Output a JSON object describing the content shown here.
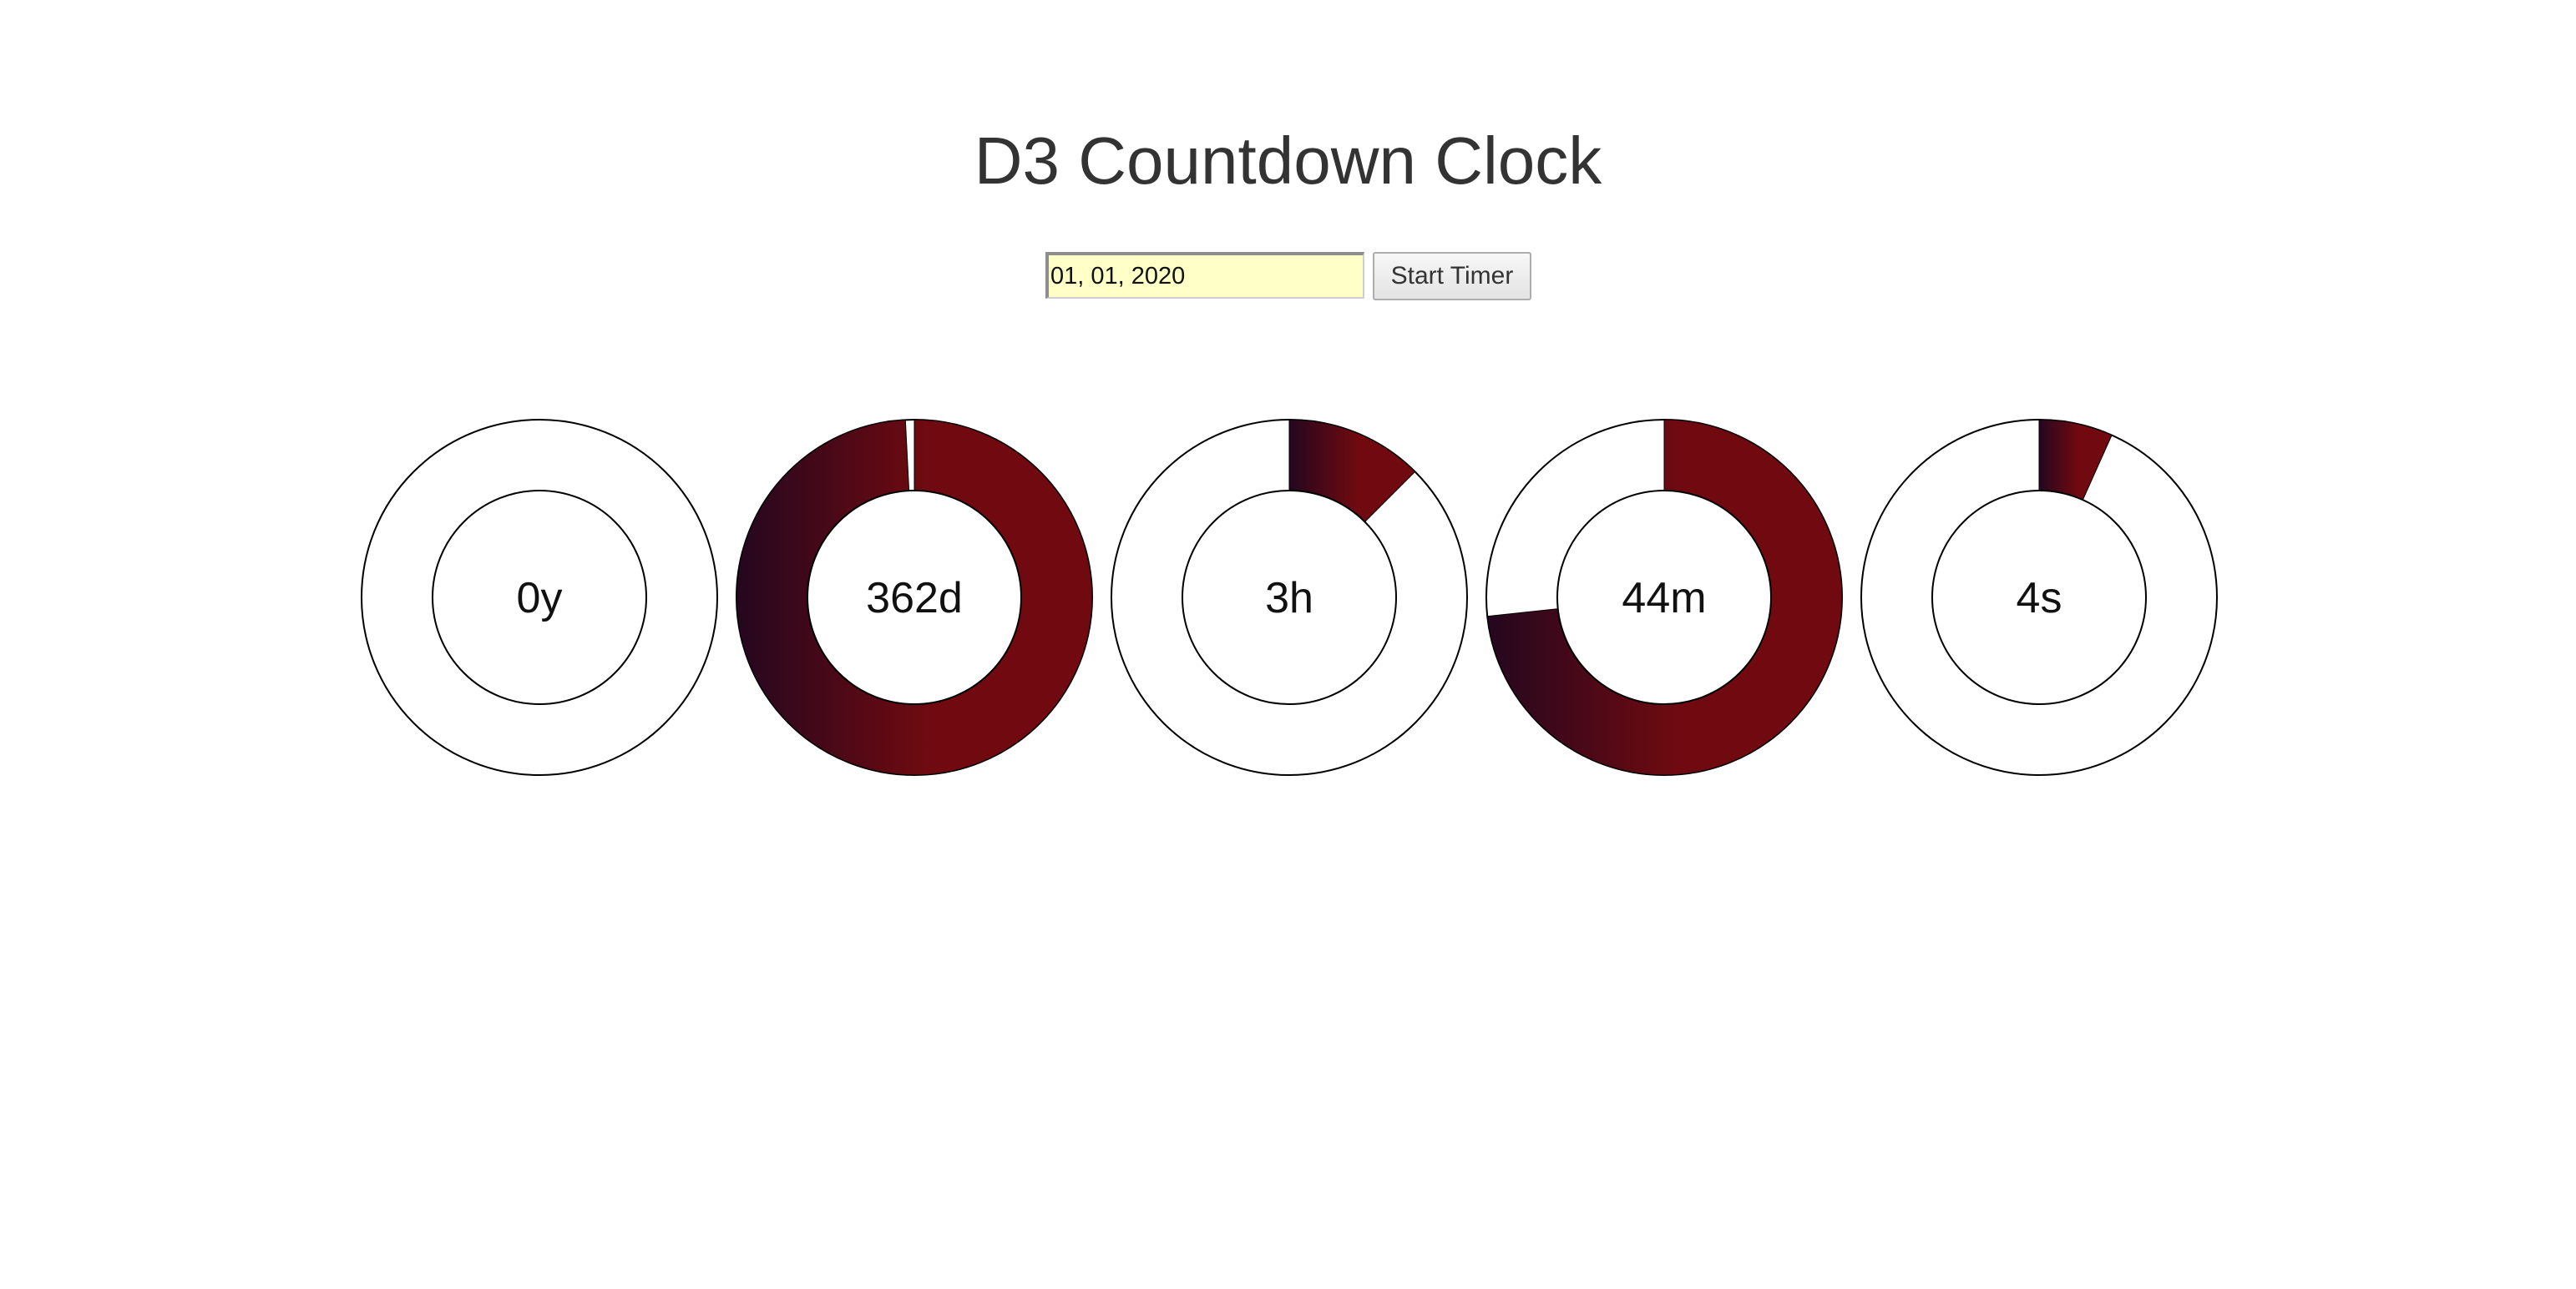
{
  "header": {
    "title": "D3 Countdown Clock"
  },
  "controls": {
    "date_value": "01, 01, 2020",
    "start_label": "Start Timer"
  },
  "colors": {
    "arc_start": "#24071f",
    "arc_end": "#710a10",
    "ring_stroke": "#000000",
    "input_background": "#ffffc8"
  },
  "clock": {
    "units": [
      {
        "label": "0y",
        "fraction": 0.0
      },
      {
        "label": "362d",
        "fraction": 0.992
      },
      {
        "label": "3h",
        "fraction": 0.125
      },
      {
        "label": "44m",
        "fraction": 0.733
      },
      {
        "label": "4s",
        "fraction": 0.067
      }
    ]
  }
}
